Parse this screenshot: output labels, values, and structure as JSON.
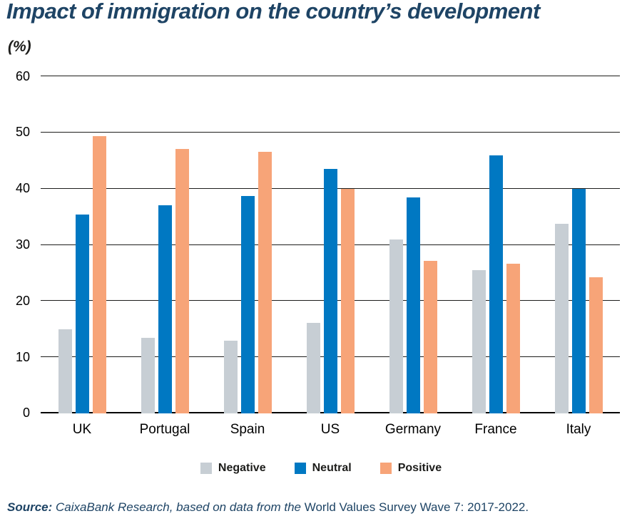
{
  "chart_data": {
    "type": "bar",
    "title": "Impact of immigration on the country’s development",
    "subtitle": "(%)",
    "xlabel": "",
    "ylabel": "%",
    "ylim": [
      0,
      60
    ],
    "yticks": [
      0,
      10,
      20,
      30,
      40,
      50,
      60
    ],
    "grid": true,
    "legend_position": "bottom",
    "categories": [
      "UK",
      "Portugal",
      "Spain",
      "US",
      "Germany",
      "France",
      "Italy"
    ],
    "series": [
      {
        "name": "Negative",
        "color": "#c7ced4",
        "values": [
          15,
          13.4,
          13,
          16.1,
          30.9,
          25.5,
          33.8
        ]
      },
      {
        "name": "Neutral",
        "color": "#0078c2",
        "values": [
          35.4,
          37,
          38.7,
          43.5,
          38.4,
          45.9,
          40
        ]
      },
      {
        "name": "Positive",
        "color": "#f7a478",
        "values": [
          49.4,
          47,
          46.6,
          40,
          27.1,
          26.7,
          24.2
        ]
      }
    ]
  },
  "source": {
    "prefix": "Source: ",
    "italic_part": "CaixaBank Research, based on data from the ",
    "regular_part": "World Values Survey Wave 7: 2017-2022."
  },
  "colors": {
    "title": "#1e4465",
    "negative": "#c7ced4",
    "neutral": "#0078c2",
    "positive": "#f7a478",
    "gridline": "#1d1d1b",
    "background": "#ffffff"
  }
}
